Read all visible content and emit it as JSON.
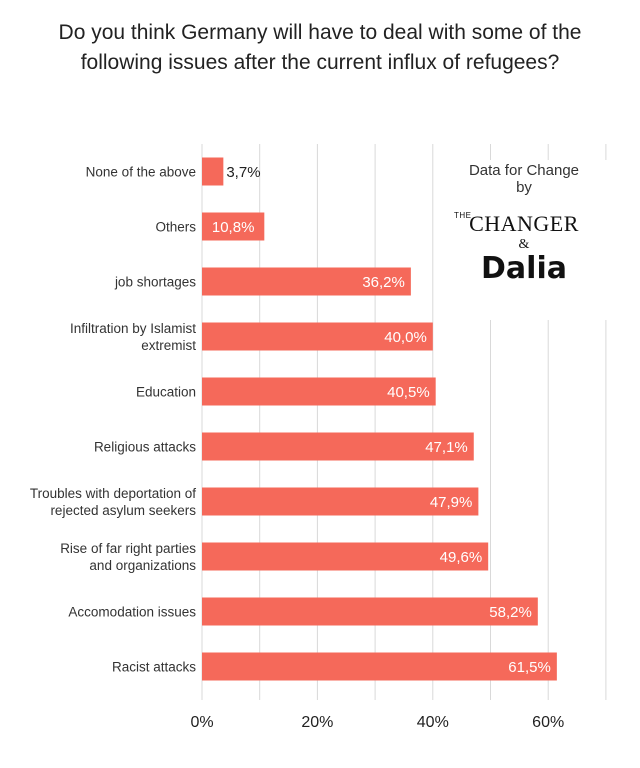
{
  "chart_data": {
    "type": "bar",
    "orientation": "horizontal",
    "title": "Do you think Germany will have to deal with some of the following issues after the current influx of refugees?",
    "categories": [
      [
        "None of the above"
      ],
      [
        "Others"
      ],
      [
        "job shortages"
      ],
      [
        "Infiltration by Islamist",
        "extremist"
      ],
      [
        "Education"
      ],
      [
        "Religious attacks"
      ],
      [
        "Troubles with deportation of",
        "rejected asylum seekers"
      ],
      [
        "Rise of far right parties",
        "and organizations"
      ],
      [
        "Accomodation issues"
      ],
      [
        "Racist attacks"
      ]
    ],
    "values": [
      3.7,
      10.8,
      36.2,
      40.0,
      40.5,
      47.1,
      47.9,
      49.6,
      58.2,
      61.5
    ],
    "value_labels": [
      "3,7%",
      "10,8%",
      "36,2%",
      "40,0%",
      "40,5%",
      "47,1%",
      "47,9%",
      "49,6%",
      "58,2%",
      "61,5%"
    ],
    "xlim": [
      0,
      70
    ],
    "x_ticks": [
      0,
      20,
      40,
      60
    ],
    "x_tick_labels": [
      "0%",
      "20%",
      "40%",
      "60%"
    ],
    "grid": true,
    "bar_color": "#f5695a"
  },
  "credit": {
    "line1": "Data for Change",
    "line2": "by",
    "brand_the": "THE",
    "brand_changer": "CHANGER",
    "brand_amp": "&",
    "brand_dalia": "Dalia"
  }
}
